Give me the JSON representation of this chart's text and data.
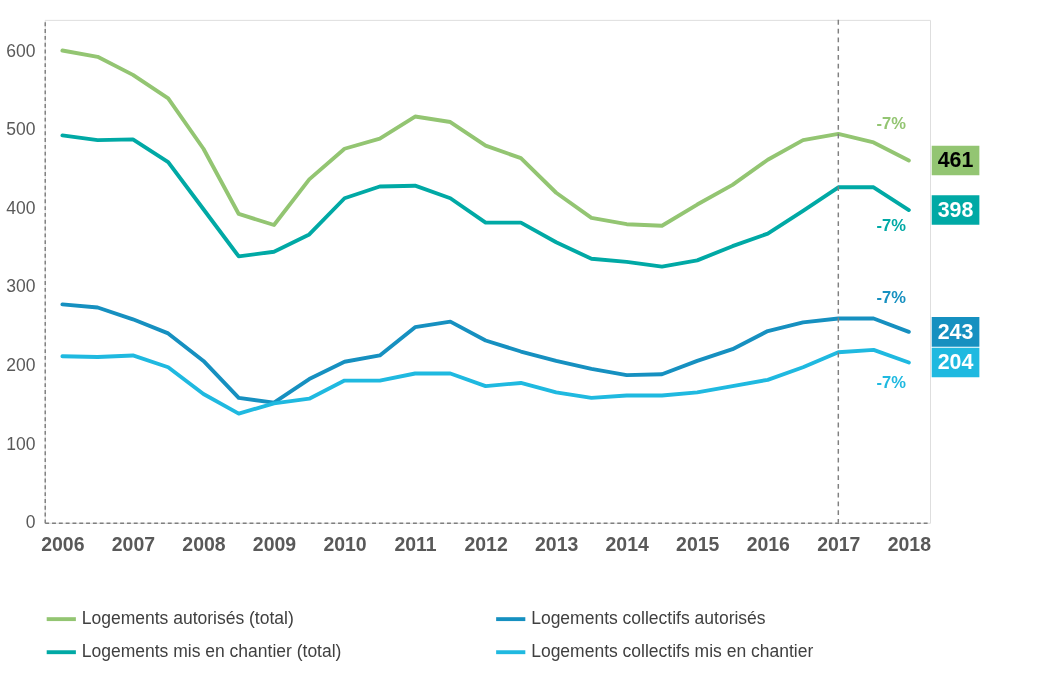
{
  "chart_data": {
    "type": "line",
    "x": [
      2006,
      2006.5,
      2007,
      2007.5,
      2008,
      2008.5,
      2009,
      2009.5,
      2010,
      2010.5,
      2011,
      2011.5,
      2012,
      2012.5,
      2013,
      2013.5,
      2014,
      2014.5,
      2015,
      2015.5,
      2016,
      2016.5,
      2017,
      2017.5,
      2018
    ],
    "series": [
      {
        "name": "Logements autorisés (total)",
        "color": "#93c572",
        "values": [
          601,
          593,
          570,
          540,
          476,
          393,
          379,
          437,
          476,
          489,
          517,
          510,
          480,
          464,
          420,
          388,
          380,
          378,
          405,
          430,
          462,
          487,
          495,
          484,
          461
        ],
        "value_labels": [
          null,
          null,
          null,
          null,
          null,
          null,
          null,
          null,
          null,
          null,
          null,
          null,
          null,
          null,
          null,
          null,
          null,
          null,
          null,
          null,
          null,
          null,
          null,
          null,
          "461"
        ]
      },
      {
        "name": "Logements collectifs autorisés",
        "color": "#1690c0",
        "values": [
          278,
          274,
          259,
          241,
          206,
          159,
          153,
          183,
          205,
          213,
          249,
          256,
          232,
          218,
          206,
          196,
          188,
          189,
          206,
          221,
          244,
          255,
          260,
          260,
          243
        ],
        "value_labels": [
          null,
          null,
          null,
          null,
          null,
          null,
          null,
          null,
          null,
          null,
          null,
          null,
          null,
          null,
          null,
          null,
          null,
          null,
          null,
          null,
          null,
          null,
          null,
          null,
          "243"
        ]
      },
      {
        "name": "Logements mis en chantier (total)",
        "color": "#00a9a5",
        "values": [
          493,
          487,
          488,
          459,
          399,
          339,
          345,
          367,
          413,
          428,
          429,
          413,
          382,
          382,
          357,
          336,
          332,
          326,
          334,
          352,
          368,
          397,
          427,
          427,
          398
        ],
        "value_labels": [
          null,
          null,
          null,
          null,
          null,
          null,
          null,
          null,
          null,
          null,
          null,
          null,
          null,
          null,
          null,
          null,
          null,
          null,
          null,
          null,
          null,
          null,
          null,
          null,
          "398"
        ]
      },
      {
        "name": "Logements collectifs mis en chantier",
        "color": "#1fb9e0",
        "values": [
          212,
          211,
          213,
          198,
          164,
          139,
          152,
          158,
          181,
          181,
          190,
          190,
          174,
          178,
          166,
          159,
          162,
          162,
          166,
          174,
          182,
          198,
          217,
          220,
          204
        ],
        "value_labels": [
          null,
          null,
          null,
          null,
          null,
          null,
          null,
          null,
          null,
          null,
          null,
          null,
          null,
          null,
          null,
          null,
          null,
          null,
          null,
          null,
          null,
          null,
          null,
          null,
          "204"
        ]
      }
    ],
    "xlim": [
      2005.75,
      2018.3
    ],
    "xticks": [
      2006,
      2007,
      2008,
      2009,
      2010,
      2011,
      2012,
      2013,
      2014,
      2015,
      2016,
      2017,
      2018
    ],
    "ylim": [
      0,
      640
    ],
    "yticks": [
      0,
      100,
      200,
      300,
      400,
      500,
      600
    ],
    "ref_lines": [
      {
        "axis": "x",
        "value": 2017,
        "color": "#808080",
        "line_style": "dashed"
      }
    ],
    "annotations": [
      "-7%",
      "-7%",
      "-7%",
      "-7%"
    ],
    "grid": false,
    "legend": "bottom",
    "marker": "none",
    "line_style": "solid"
  }
}
